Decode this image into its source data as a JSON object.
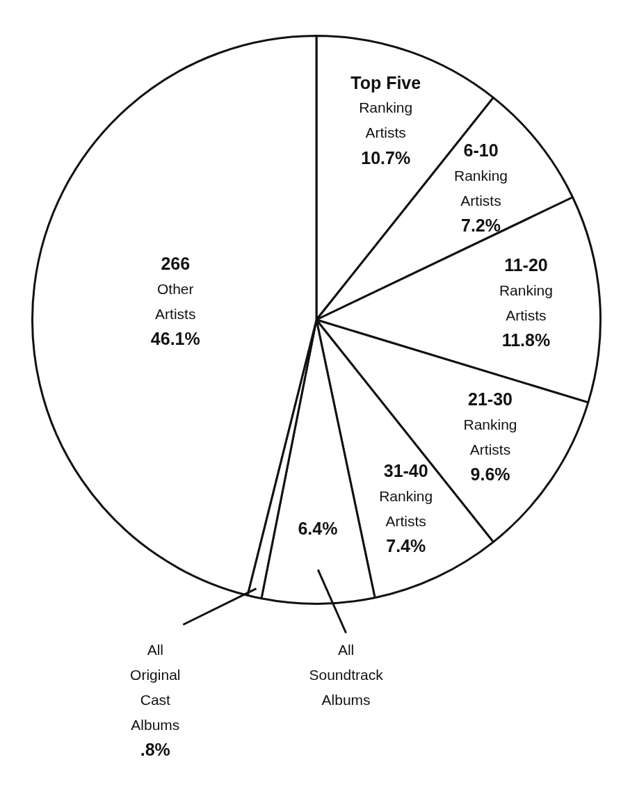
{
  "chart_data": {
    "type": "pie",
    "categories": [
      "Top Five\nRanking\nArtists",
      "6-10\nRanking\nArtists",
      "11-20\nRanking\nArtists",
      "21-30\nRanking\nArtists",
      "31-40\nRanking\nArtists",
      "All\nSoundtrack\nAlbums",
      "All\nOriginal\nCast\nAlbums",
      "266\nOther\nArtists"
    ],
    "values": [
      10.7,
      7.2,
      11.8,
      9.6,
      7.4,
      6.4,
      0.8,
      46.1
    ],
    "colors": [
      "#ffffff",
      "#ffffff",
      "#ffffff",
      "#ffffff",
      "#ffffff",
      "#ffffff",
      "#ffffff",
      "#ffffff"
    ],
    "value_labels": [
      "10.7%",
      "7.2%",
      "11.8%",
      "9.6%",
      "7.4%",
      "6.4%",
      ".8%",
      "46.1%"
    ],
    "legend": false
  }
}
